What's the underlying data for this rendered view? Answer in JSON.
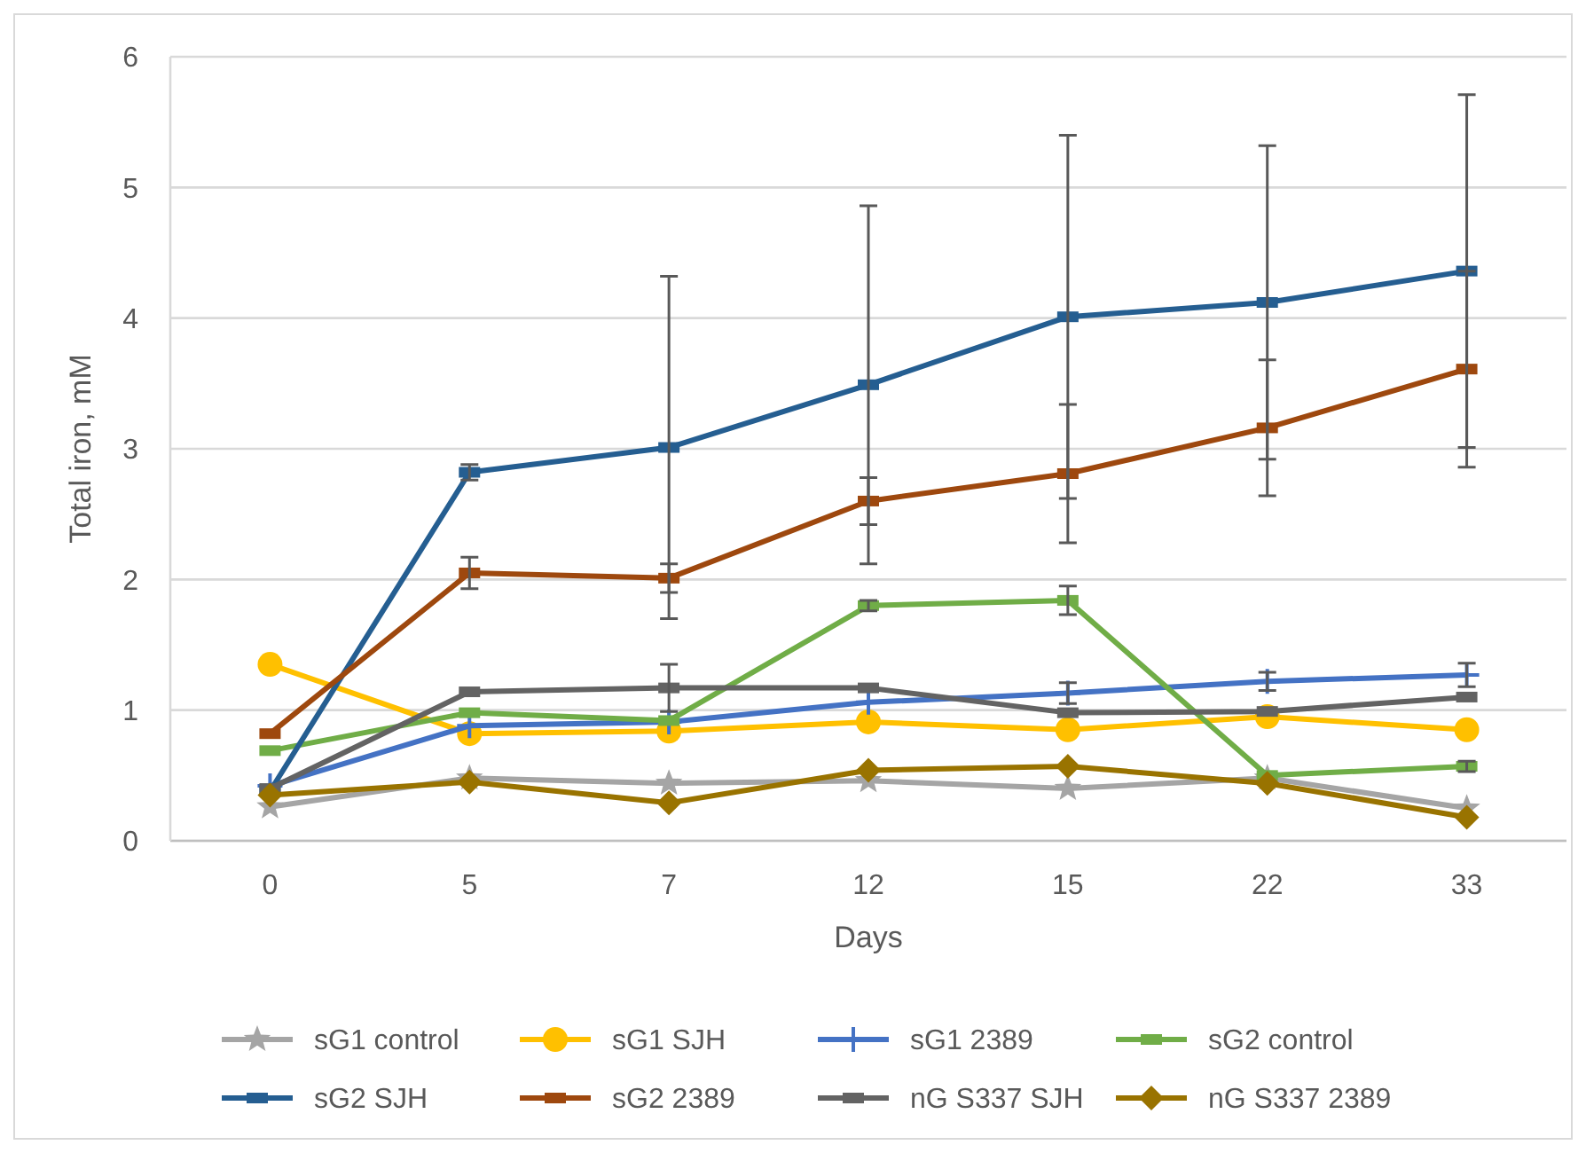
{
  "chart_data": {
    "type": "line",
    "xlabel": "Days",
    "ylabel": "Total iron, mM",
    "categories": [
      "0",
      "5",
      "7",
      "12",
      "15",
      "22",
      "33"
    ],
    "ylim": [
      0,
      6
    ],
    "yticks": [
      0,
      1,
      2,
      3,
      4,
      5,
      6
    ],
    "grid": "y",
    "legend": "bottom",
    "line_style": "solid",
    "series": [
      {
        "name": "sG1 control",
        "color": "#a5a5a5",
        "marker": "star",
        "values": [
          0.26,
          0.48,
          0.44,
          0.46,
          0.4,
          0.48,
          0.25
        ]
      },
      {
        "name": "sG1 SJH",
        "color": "#ffc000",
        "marker": "circle",
        "values": [
          1.35,
          0.82,
          0.84,
          0.91,
          0.85,
          0.95,
          0.85
        ]
      },
      {
        "name": "sG1 2389",
        "color": "#4472c4",
        "marker": "cross",
        "values": [
          0.42,
          0.88,
          0.91,
          1.06,
          1.13,
          1.22,
          1.27
        ],
        "errors": [
          null,
          null,
          null,
          null,
          0.08,
          0.07,
          0.09
        ]
      },
      {
        "name": "sG2 control",
        "color": "#70ad47",
        "marker": "square",
        "values": [
          0.69,
          0.98,
          0.92,
          1.8,
          1.84,
          0.5,
          0.57
        ],
        "errors": [
          null,
          null,
          null,
          0.04,
          0.11,
          null,
          0.04
        ]
      },
      {
        "name": "sG2 SJH",
        "color": "#255e91",
        "marker": "square",
        "values": [
          0.38,
          2.82,
          3.01,
          3.49,
          4.01,
          4.12,
          4.36
        ],
        "errors": [
          null,
          0.06,
          1.31,
          1.37,
          1.39,
          1.2,
          1.35
        ]
      },
      {
        "name": "sG2 2389",
        "color": "#9e480e",
        "marker": "square",
        "values": [
          0.82,
          2.05,
          2.01,
          2.6,
          2.81,
          3.16,
          3.61
        ],
        "errors": [
          null,
          0.12,
          0.11,
          0.18,
          0.53,
          0.52,
          0.75
        ]
      },
      {
        "name": "nG S337 SJH",
        "color": "#636363",
        "marker": "square",
        "values": [
          0.4,
          1.14,
          1.17,
          1.17,
          0.98,
          0.99,
          1.1
        ],
        "errors": [
          null,
          null,
          0.18,
          null,
          null,
          null,
          null
        ]
      },
      {
        "name": "nG S337 2389",
        "color": "#997300",
        "marker": "diamond",
        "values": [
          0.35,
          0.45,
          0.29,
          0.54,
          0.57,
          0.44,
          0.18
        ]
      }
    ]
  }
}
